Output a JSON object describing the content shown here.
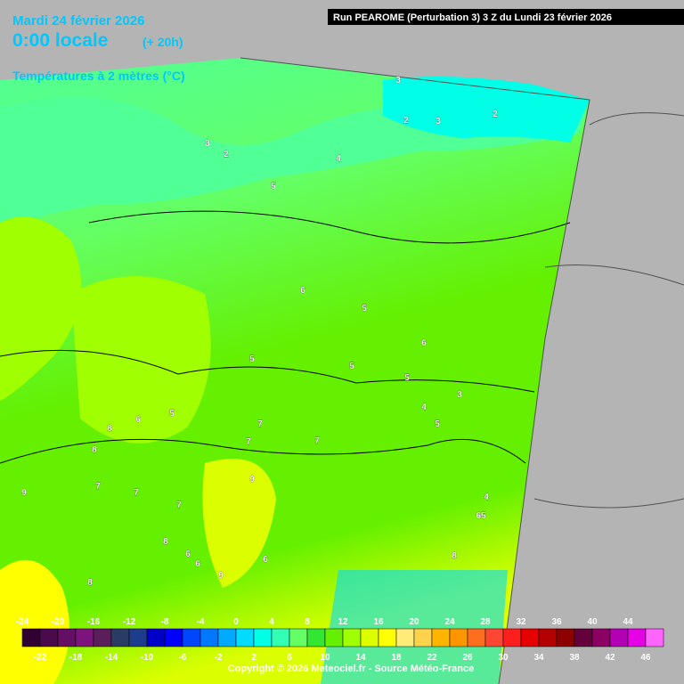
{
  "header": {
    "date": "Mardi 24 février 2026",
    "time": "0:00 locale",
    "lead": "(+ 20h)",
    "variable": "Températures à 2 mètres (°C)",
    "run": "Run PEAROME (Perturbation 3) 3 Z du Lundi 23 février 2026"
  },
  "contour_labels": [
    "3",
    "2",
    "3",
    "2",
    "3",
    "2",
    "4",
    "5",
    "6",
    "5",
    "6",
    "5",
    "5",
    "5",
    "4",
    "3",
    "5",
    "6",
    "5",
    "8",
    "8",
    "7",
    "7",
    "7",
    "7",
    "9",
    "7",
    "8",
    "7",
    "6",
    "6",
    "9",
    "6",
    "8",
    "9",
    "8",
    "65",
    "4"
  ],
  "legend": {
    "top_labels": [
      -24,
      -20,
      -16,
      -12,
      -8,
      -4,
      0,
      4,
      8,
      12,
      16,
      20,
      24,
      28,
      32,
      36,
      40,
      44
    ],
    "bottom_labels": [
      -22,
      -18,
      -14,
      -10,
      -6,
      -2,
      2,
      6,
      10,
      14,
      18,
      22,
      26,
      30,
      34,
      38,
      42,
      46
    ],
    "colors": [
      "#320032",
      "#4b0a4b",
      "#640f64",
      "#7d147d",
      "#5a1e5a",
      "#283c64",
      "#1e3c8c",
      "#0000c8",
      "#0000ff",
      "#0046ff",
      "#0078ff",
      "#00aaff",
      "#00dcff",
      "#00ffe6",
      "#32ffb4",
      "#64ff64",
      "#32e632",
      "#64f000",
      "#a0ff00",
      "#dcff00",
      "#ffff00",
      "#ffeb78",
      "#ffd24b",
      "#ffb400",
      "#ff9600",
      "#ff6e1e",
      "#ff4632",
      "#ff1e1e",
      "#e60000",
      "#b40000",
      "#8c0000",
      "#64003c",
      "#8c0064",
      "#b400b4",
      "#e600e6",
      "#ff64ff"
    ]
  },
  "copyright": "Copyright © 2026 Meteociel.fr - Source Météo-France"
}
